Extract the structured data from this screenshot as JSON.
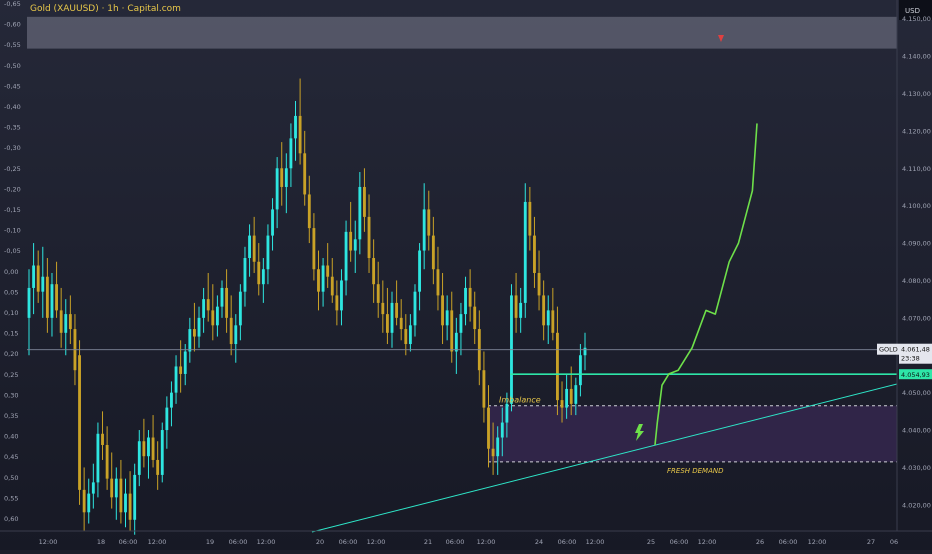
{
  "header": {
    "title": "Gold (XAUUSD) · 1h · Capital.com"
  },
  "chart_data": {
    "type": "candlestick",
    "instrument": "GOLD",
    "currency": "USD",
    "candle_colors": {
      "up": "#2ee6e0",
      "down": "#c9a227"
    },
    "left_axis_ticks": [
      "-0,65",
      "-0,60",
      "-0,55",
      "-0,50",
      "-0,45",
      "-0,40",
      "-0,35",
      "-0,30",
      "-0,25",
      "-0,20",
      "-0,15",
      "-0,10",
      "-0,05",
      "0,00",
      "0,05",
      "0,10",
      "0,15",
      "0,20",
      "0,25",
      "0,30",
      "0,35",
      "0,40",
      "0,45",
      "0,50",
      "0,55",
      "0,60"
    ],
    "right_axis_ticks": [
      "4.150,00",
      "4.140,00",
      "4.130,00",
      "4.120,00",
      "4.110,00",
      "4.100,00",
      "4.090,00",
      "4.080,00",
      "4.070,00",
      "4.060,00",
      "4.050,00",
      "4.040,00",
      "4.030,00",
      "4.020,00"
    ],
    "x_axis_ticks": [
      "12:00",
      "18",
      "06:00",
      "12:00",
      "19",
      "06:00",
      "12:00",
      "20",
      "06:00",
      "12:00",
      "21",
      "06:00",
      "12:00",
      "24",
      "06:00",
      "12:00",
      "25",
      "06:00",
      "12:00",
      "26",
      "06:00",
      "12:00",
      "27",
      "06"
    ],
    "y_range": [
      4013,
      4155
    ],
    "price_label": {
      "symbol": "GOLD",
      "price": "4.061,48",
      "countdown": "23:38"
    },
    "level_label": "4.054,93",
    "annotations": {
      "imbalance": "Imbalance",
      "fresh_demand": "FRESH DEMAND"
    },
    "zones": [
      {
        "name": "supply-zone",
        "from": 4142,
        "to": 4150.5,
        "color": "#5c5e6e"
      },
      {
        "name": "fresh-demand-zone",
        "from": 4031.5,
        "to": 4046.5,
        "color": "#3a2a55"
      }
    ],
    "levels": [
      {
        "name": "current-price",
        "value": 4061.48,
        "color": "#7e8599"
      },
      {
        "name": "green-level",
        "value": 4054.93,
        "color": "#2ee6a8"
      }
    ],
    "projection_color": "#6ee04a",
    "candles": [
      [
        4070,
        4083,
        4060,
        4078
      ],
      [
        4078,
        4090,
        4071,
        4084
      ],
      [
        4084,
        4088,
        4074,
        4077
      ],
      [
        4077,
        4089,
        4070,
        4081
      ],
      [
        4081,
        4086,
        4066,
        4070
      ],
      [
        4070,
        4082,
        4065,
        4079
      ],
      [
        4079,
        4085,
        4070,
        4072
      ],
      [
        4072,
        4078,
        4062,
        4066
      ],
      [
        4066,
        4075,
        4060,
        4071
      ],
      [
        4071,
        4076,
        4063,
        4067
      ],
      [
        4067,
        4071,
        4052,
        4056
      ],
      [
        4060,
        4064,
        4020,
        4024
      ],
      [
        4024,
        4030,
        4013,
        4018
      ],
      [
        4018,
        4027,
        4015,
        4023
      ],
      [
        4023,
        4031,
        4019,
        4026
      ],
      [
        4026,
        4042,
        4022,
        4039
      ],
      [
        4039,
        4045,
        4032,
        4036
      ],
      [
        4036,
        4041,
        4024,
        4027
      ],
      [
        4027,
        4034,
        4019,
        4022
      ],
      [
        4022,
        4030,
        4016,
        4027
      ],
      [
        4027,
        4032,
        4015,
        4018
      ],
      [
        4018,
        4027,
        4014,
        4023
      ],
      [
        4023,
        4029,
        4013,
        4016
      ],
      [
        4016,
        4031,
        4012,
        4028
      ],
      [
        4028,
        4040,
        4025,
        4037
      ],
      [
        4037,
        4043,
        4030,
        4033
      ],
      [
        4033,
        4040,
        4027,
        4038
      ],
      [
        4038,
        4044,
        4030,
        4032
      ],
      [
        4032,
        4037,
        4024,
        4028
      ],
      [
        4028,
        4042,
        4026,
        4040
      ],
      [
        4040,
        4049,
        4035,
        4046
      ],
      [
        4046,
        4053,
        4041,
        4050
      ],
      [
        4050,
        4060,
        4047,
        4057
      ],
      [
        4057,
        4064,
        4050,
        4055
      ],
      [
        4055,
        4063,
        4052,
        4061
      ],
      [
        4061,
        4070,
        4058,
        4067
      ],
      [
        4067,
        4074,
        4061,
        4065
      ],
      [
        4065,
        4073,
        4062,
        4070
      ],
      [
        4070,
        4078,
        4066,
        4075
      ],
      [
        4075,
        4082,
        4069,
        4072
      ],
      [
        4072,
        4079,
        4064,
        4068
      ],
      [
        4068,
        4076,
        4065,
        4073
      ],
      [
        4073,
        4080,
        4070,
        4078
      ],
      [
        4078,
        4083,
        4066,
        4070
      ],
      [
        4070,
        4076,
        4060,
        4063
      ],
      [
        4063,
        4071,
        4058,
        4068
      ],
      [
        4068,
        4079,
        4064,
        4077
      ],
      [
        4077,
        4089,
        4073,
        4086
      ],
      [
        4086,
        4095,
        4081,
        4092
      ],
      [
        4092,
        4097,
        4082,
        4085
      ],
      [
        4085,
        4090,
        4076,
        4079
      ],
      [
        4079,
        4086,
        4074,
        4083
      ],
      [
        4083,
        4095,
        4079,
        4092
      ],
      [
        4092,
        4102,
        4088,
        4099
      ],
      [
        4099,
        4113,
        4094,
        4110
      ],
      [
        4110,
        4117,
        4100,
        4105
      ],
      [
        4105,
        4114,
        4098,
        4110
      ],
      [
        4110,
        4122,
        4105,
        4118
      ],
      [
        4118,
        4128,
        4112,
        4124
      ],
      [
        4124,
        4134,
        4111,
        4114
      ],
      [
        4114,
        4120,
        4100,
        4103
      ],
      [
        4103,
        4108,
        4090,
        4094
      ],
      [
        4094,
        4098,
        4080,
        4083
      ],
      [
        4083,
        4088,
        4072,
        4077
      ],
      [
        4077,
        4086,
        4073,
        4084
      ],
      [
        4084,
        4090,
        4078,
        4081
      ],
      [
        4081,
        4086,
        4074,
        4076
      ],
      [
        4076,
        4080,
        4068,
        4072
      ],
      [
        4072,
        4083,
        4068,
        4080
      ],
      [
        4080,
        4096,
        4076,
        4093
      ],
      [
        4093,
        4101,
        4085,
        4088
      ],
      [
        4088,
        4096,
        4082,
        4091
      ],
      [
        4091,
        4109,
        4087,
        4105
      ],
      [
        4105,
        4110,
        4093,
        4097
      ],
      [
        4097,
        4103,
        4082,
        4086
      ],
      [
        4086,
        4091,
        4074,
        4079
      ],
      [
        4079,
        4085,
        4070,
        4074
      ],
      [
        4074,
        4080,
        4066,
        4071
      ],
      [
        4071,
        4078,
        4063,
        4066
      ],
      [
        4066,
        4077,
        4062,
        4074
      ],
      [
        4074,
        4080,
        4068,
        4070
      ],
      [
        4070,
        4075,
        4064,
        4067
      ],
      [
        4067,
        4071,
        4060,
        4063
      ],
      [
        4063,
        4071,
        4061,
        4068
      ],
      [
        4068,
        4079,
        4065,
        4077
      ],
      [
        4077,
        4090,
        4072,
        4088
      ],
      [
        4088,
        4106,
        4083,
        4099
      ],
      [
        4099,
        4104,
        4088,
        4092
      ],
      [
        4092,
        4097,
        4079,
        4083
      ],
      [
        4083,
        4089,
        4072,
        4076
      ],
      [
        4076,
        4082,
        4063,
        4068
      ],
      [
        4068,
        4076,
        4064,
        4072
      ],
      [
        4072,
        4077,
        4058,
        4061
      ],
      [
        4061,
        4070,
        4055,
        4066
      ],
      [
        4066,
        4074,
        4060,
        4071
      ],
      [
        4071,
        4081,
        4068,
        4078
      ],
      [
        4078,
        4083,
        4069,
        4073
      ],
      [
        4073,
        4077,
        4063,
        4067
      ],
      [
        4067,
        4072,
        4052,
        4056
      ],
      [
        4056,
        4061,
        4042,
        4046
      ],
      [
        4046,
        4052,
        4030,
        4035
      ],
      [
        4035,
        4042,
        4028,
        4033
      ],
      [
        4033,
        4041,
        4028,
        4038
      ],
      [
        4038,
        4046,
        4033,
        4042
      ],
      [
        4042,
        4050,
        4038,
        4047
      ],
      [
        4047,
        4079,
        4045,
        4076
      ],
      [
        4076,
        4082,
        4066,
        4070
      ],
      [
        4070,
        4078,
        4066,
        4074
      ],
      [
        4074,
        4106,
        4070,
        4101
      ],
      [
        4101,
        4105,
        4088,
        4092
      ],
      [
        4092,
        4097,
        4078,
        4082
      ],
      [
        4082,
        4088,
        4072,
        4076
      ],
      [
        4076,
        4080,
        4064,
        4068
      ],
      [
        4068,
        4076,
        4063,
        4072
      ],
      [
        4072,
        4078,
        4064,
        4066
      ],
      [
        4066,
        4073,
        4044,
        4048
      ],
      [
        4048,
        4053,
        4042,
        4046
      ],
      [
        4046,
        4055,
        4043,
        4051
      ],
      [
        4051,
        4057,
        4044,
        4047
      ],
      [
        4047,
        4054,
        4044,
        4052
      ],
      [
        4052,
        4063,
        4049,
        4060
      ],
      [
        4060,
        4066,
        4056,
        4062
      ]
    ],
    "projection_path": [
      [
        4036,
        0
      ],
      [
        4042,
        0.05
      ],
      [
        4052,
        0.15
      ],
      [
        4055,
        0.3
      ],
      [
        4056,
        0.5
      ],
      [
        4062,
        0.8
      ],
      [
        4072,
        1.1
      ],
      [
        4071,
        1.3
      ],
      [
        4085,
        1.6
      ],
      [
        4090,
        1.8
      ],
      [
        4104,
        2.1
      ],
      [
        4122,
        2.2
      ]
    ]
  }
}
